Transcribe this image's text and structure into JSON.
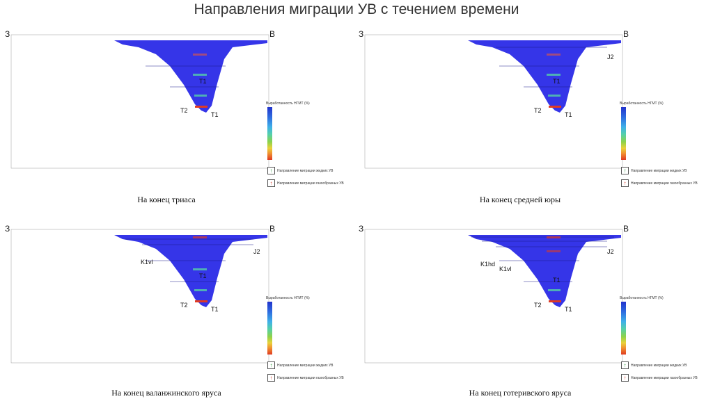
{
  "title": "Направления миграции УВ с течением времени",
  "directions": {
    "left": "З",
    "right": "В"
  },
  "legend": {
    "title": "Выработанность НГМТ (%)",
    "liquid": "Направление миграции жидких УВ",
    "gas": "Направление миграции газообразных УВ"
  },
  "colors": {
    "section": "#3535e8",
    "liquid_arrow": "#2a9d3a",
    "gas_arrow": "#d83a2a"
  },
  "panels": [
    {
      "caption": "На конец триаса",
      "labels": [
        "T1",
        "T2",
        "T1"
      ]
    },
    {
      "caption": "На конец средней юры",
      "labels": [
        "J2",
        "T1",
        "T2",
        "T1"
      ]
    },
    {
      "caption": "На конец валанжинского яруса",
      "labels": [
        "K1vl",
        "J2",
        "T1",
        "T2",
        "T1"
      ]
    },
    {
      "caption": "На конец готеривского яруса",
      "labels": [
        "K1hd",
        "K1vl",
        "J2",
        "T1",
        "T2",
        "T1"
      ]
    }
  ]
}
